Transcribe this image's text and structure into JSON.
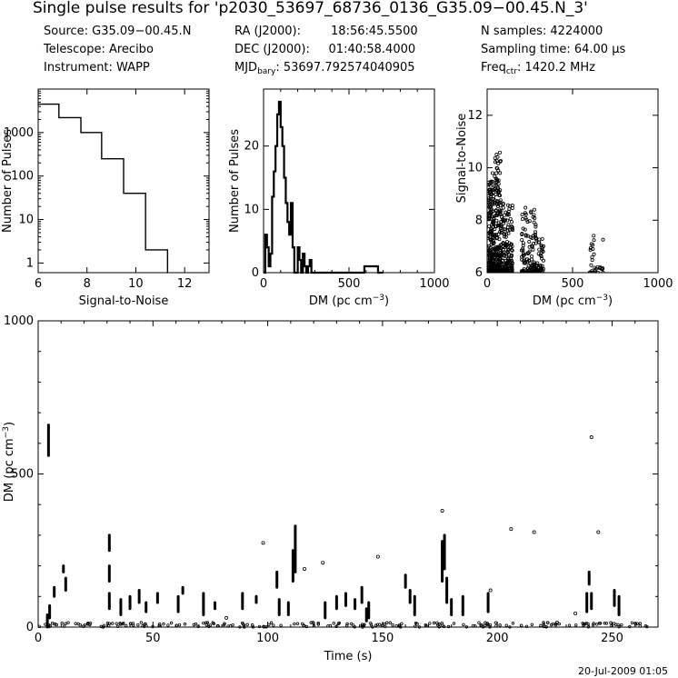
{
  "header": {
    "title": "Single pulse results for 'p2030_53697_68736_0136_G35.09−00.45.N_3'",
    "col1": [
      "Source: G35.09−00.45.N",
      "Telescope: Arecibo",
      "Instrument: WAPP"
    ],
    "ra": "RA (J2000):        18:56:45.5500",
    "dec": "DEC (J2000):     01:40:58.4000",
    "mjd_label": "MJD",
    "mjd_sub": "bary",
    "mjd_value": ": 53697.792574040905",
    "nsamples": "N samples: 4224000",
    "sampling": "Sampling time: 64.00 μs",
    "freq_label": "Freq",
    "freq_sub": "ctr",
    "freq_value": ": 1420.2 MHz"
  },
  "footer": {
    "date": "20-Jul-2009 01:05"
  },
  "chart_data": [
    {
      "id": "snr_hist",
      "type": "step-histogram",
      "xlabel": "Signal-to-Noise",
      "ylabel": "Number of Pulses",
      "yscale": "log",
      "xlim": [
        6,
        13
      ],
      "ylim": [
        0.6,
        10000
      ],
      "xticks": [
        "6",
        "8",
        "10",
        "12"
      ],
      "yticks": [
        "1",
        "10",
        "100",
        "1000"
      ],
      "edges": [
        6,
        6.85,
        7.75,
        8.6,
        9.5,
        10.4,
        11.3
      ],
      "counts": [
        4500,
        2200,
        1000,
        250,
        40,
        2
      ]
    },
    {
      "id": "dm_hist",
      "type": "step-histogram",
      "xlabel": "DM (pc cm",
      "xlabel_sup": "−3",
      "xlabel_end": ")",
      "ylabel": "Number of Pulses",
      "xlim": [
        0,
        1000
      ],
      "ylim": [
        0,
        29
      ],
      "xticks": [
        "0",
        "500",
        "1000"
      ],
      "yticks": [
        "0",
        "10",
        "20"
      ],
      "bin_width": 10,
      "counts": [
        0,
        6,
        4,
        1,
        3,
        12,
        16,
        20,
        25,
        27,
        23,
        20,
        15,
        11,
        8,
        6,
        11,
        4,
        0,
        0,
        4,
        2,
        0,
        3,
        1,
        0,
        1,
        2,
        0,
        0,
        0,
        0,
        0,
        0,
        0,
        0,
        0,
        0,
        0,
        0,
        0,
        0,
        0,
        0,
        0,
        0,
        0,
        0,
        0,
        0,
        0,
        0,
        0,
        0,
        0,
        0,
        0,
        0,
        0,
        1,
        1,
        1,
        1,
        1,
        1,
        1,
        1,
        0,
        0,
        0
      ]
    },
    {
      "id": "snr_vs_dm",
      "type": "scatter",
      "xlabel": "DM (pc cm",
      "xlabel_sup": "−3",
      "xlabel_end": ")",
      "ylabel": "Signal-to-Noise",
      "xlim": [
        0,
        1000
      ],
      "ylim": [
        6,
        13
      ],
      "xticks": [
        "0",
        "500",
        "1000"
      ],
      "yticks": [
        "6",
        "8",
        "10",
        "12"
      ],
      "clusters": [
        {
          "dm": [
            5,
            30
          ],
          "snr": [
            6,
            9.5
          ],
          "n": 160
        },
        {
          "dm": [
            30,
            80
          ],
          "snr": [
            6,
            10.6
          ],
          "n": 240
        },
        {
          "dm": [
            80,
            150
          ],
          "snr": [
            6,
            8.8
          ],
          "n": 170
        },
        {
          "dm": [
            200,
            290
          ],
          "snr": [
            6,
            8.5
          ],
          "n": 130
        },
        {
          "dm": [
            290,
            330
          ],
          "snr": [
            6,
            7.6
          ],
          "n": 40
        },
        {
          "dm": [
            590,
            680
          ],
          "snr": [
            6,
            7.7
          ],
          "n": 30
        }
      ]
    },
    {
      "id": "dm_vs_time",
      "type": "scatter",
      "xlabel": "Time (s)",
      "ylabel": "DM (pc cm",
      "ylabel_sup": "−3",
      "ylabel_end": ")",
      "xlim": [
        0,
        270
      ],
      "ylim": [
        0,
        1000
      ],
      "xticks": [
        "0",
        "50",
        "100",
        "150",
        "200",
        "250"
      ],
      "yticks": [
        "0",
        "500",
        "1000"
      ],
      "streaks": [
        [
          4,
          0,
          40
        ],
        [
          5,
          30,
          70
        ],
        [
          4.5,
          560,
          660
        ],
        [
          7,
          100,
          130
        ],
        [
          11,
          180,
          200
        ],
        [
          12,
          120,
          160
        ],
        [
          31,
          60,
          110
        ],
        [
          31,
          150,
          200
        ],
        [
          31,
          250,
          300
        ],
        [
          36,
          40,
          90
        ],
        [
          40,
          60,
          100
        ],
        [
          44,
          80,
          120
        ],
        [
          47,
          50,
          80
        ],
        [
          52,
          80,
          110
        ],
        [
          61,
          50,
          100
        ],
        [
          63,
          110,
          130
        ],
        [
          72,
          40,
          110
        ],
        [
          77,
          60,
          80
        ],
        [
          89,
          60,
          110
        ],
        [
          95,
          80,
          100
        ],
        [
          104,
          130,
          180
        ],
        [
          105,
          40,
          90
        ],
        [
          109,
          40,
          80
        ],
        [
          111,
          150,
          250
        ],
        [
          112,
          180,
          330
        ],
        [
          125,
          30,
          80
        ],
        [
          130,
          60,
          100
        ],
        [
          134,
          70,
          110
        ],
        [
          138,
          60,
          90
        ],
        [
          141,
          80,
          130
        ],
        [
          143,
          20,
          60
        ],
        [
          144,
          30,
          80
        ],
        [
          160,
          130,
          170
        ],
        [
          162,
          80,
          120
        ],
        [
          164,
          40,
          100
        ],
        [
          176,
          150,
          280
        ],
        [
          177,
          190,
          300
        ],
        [
          178,
          120,
          160
        ],
        [
          178,
          80,
          120
        ],
        [
          180,
          40,
          90
        ],
        [
          185,
          40,
          100
        ],
        [
          196,
          50,
          110
        ],
        [
          239,
          50,
          110
        ],
        [
          240,
          140,
          180
        ],
        [
          241,
          60,
          110
        ],
        [
          251,
          70,
          120
        ],
        [
          253,
          40,
          100
        ]
      ],
      "points": [
        [
          148,
          230
        ],
        [
          176,
          380
        ],
        [
          197,
          120
        ],
        [
          206,
          320
        ],
        [
          216,
          310
        ],
        [
          234,
          45
        ],
        [
          241,
          620
        ],
        [
          244,
          310
        ],
        [
          226,
          15
        ],
        [
          98,
          275
        ],
        [
          116,
          190
        ],
        [
          124,
          210
        ],
        [
          165,
          10
        ],
        [
          150,
          5
        ],
        [
          82,
          30
        ]
      ]
    }
  ]
}
